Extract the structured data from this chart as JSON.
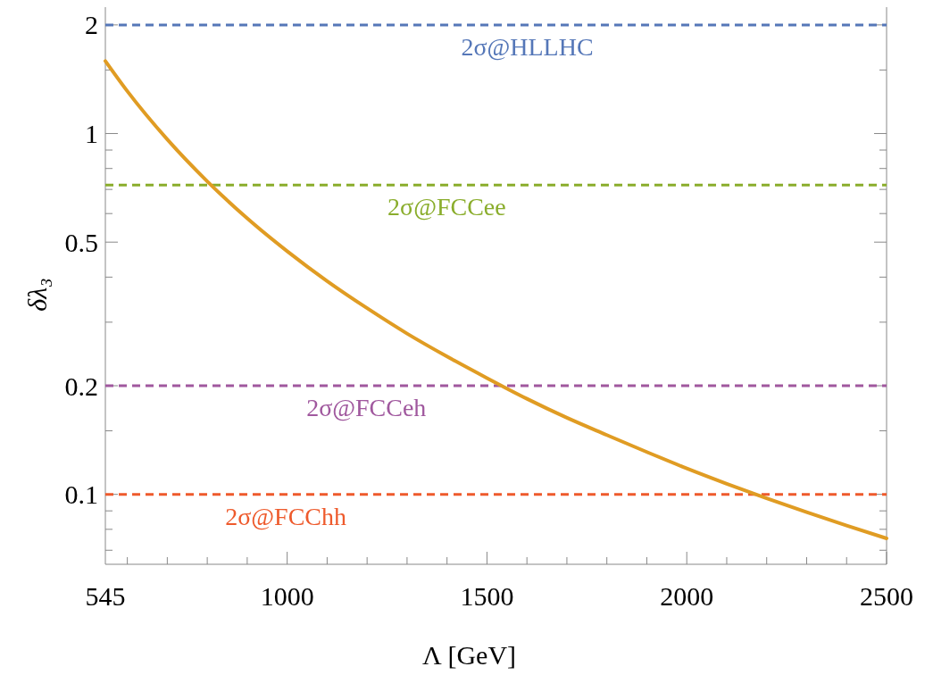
{
  "chart_data": {
    "type": "line",
    "xlabel": "Λ [GeV]",
    "ylabel": "δλ₃",
    "log": "y",
    "grid": false,
    "line_style": "solid",
    "marker": "none",
    "x": [
      545,
      600,
      700,
      800,
      900,
      1000,
      1100,
      1200,
      1300,
      1400,
      1500,
      1600,
      1700,
      1800,
      1900,
      2000,
      2100,
      2200,
      2300,
      2400,
      2500
    ],
    "series": [
      {
        "color": "#e09c23",
        "values": [
          1.588,
          1.31,
          0.963,
          0.737,
          0.582,
          0.472,
          0.39,
          0.328,
          0.279,
          0.241,
          0.21,
          0.184,
          0.163,
          0.146,
          0.131,
          0.118,
          0.107,
          0.0975,
          0.0892,
          0.0819,
          0.0755
        ]
      }
    ],
    "xlim": [
      545,
      2500
    ],
    "ylim": [
      0.064,
      2.24
    ],
    "xticks": [
      545,
      {
        "value": 600,
        "label": null
      },
      {
        "value": 700,
        "label": null
      },
      {
        "value": 800,
        "label": null
      },
      {
        "value": 900,
        "label": null
      },
      1000,
      {
        "value": 1100,
        "label": null
      },
      {
        "value": 1200,
        "label": null
      },
      {
        "value": 1300,
        "label": null
      },
      {
        "value": 1400,
        "label": null
      },
      1500,
      {
        "value": 1600,
        "label": null
      },
      {
        "value": 1700,
        "label": null
      },
      {
        "value": 1800,
        "label": null
      },
      {
        "value": 1900,
        "label": null
      },
      2000,
      {
        "value": 2100,
        "label": null
      },
      {
        "value": 2200,
        "label": null
      },
      {
        "value": 2300,
        "label": null
      },
      {
        "value": 2400,
        "label": null
      },
      2500
    ],
    "yticks": [
      {
        "value": 0.07,
        "label": null
      },
      {
        "value": 0.08,
        "label": null
      },
      {
        "value": 0.09,
        "label": null
      },
      0.1,
      {
        "value": 0.15,
        "label": null
      },
      0.2,
      {
        "value": 0.3,
        "label": null
      },
      {
        "value": 0.4,
        "label": null
      },
      0.5,
      {
        "value": 0.6,
        "label": null
      },
      {
        "value": 0.7,
        "label": null
      },
      {
        "value": 0.8,
        "label": null
      },
      {
        "value": 0.9,
        "label": null
      },
      1,
      {
        "value": 1.5,
        "label": null
      },
      2
    ],
    "ref_lines": [
      {
        "axis": "y",
        "value": 2,
        "label": "2σ@HLLHC",
        "color": "#5577b8",
        "line_style": "dashed"
      },
      {
        "axis": "y",
        "value": 0.72,
        "label": "2σ@FCCee",
        "color": "#8aad2c",
        "line_style": "dashed"
      },
      {
        "axis": "y",
        "value": 0.2,
        "label": "2σ@FCCeh",
        "color": "#a0589e",
        "line_style": "dashed"
      },
      {
        "axis": "y",
        "value": 0.1,
        "label": "2σ@FCChh",
        "color": "#ee5a2c",
        "line_style": "dashed"
      }
    ]
  }
}
